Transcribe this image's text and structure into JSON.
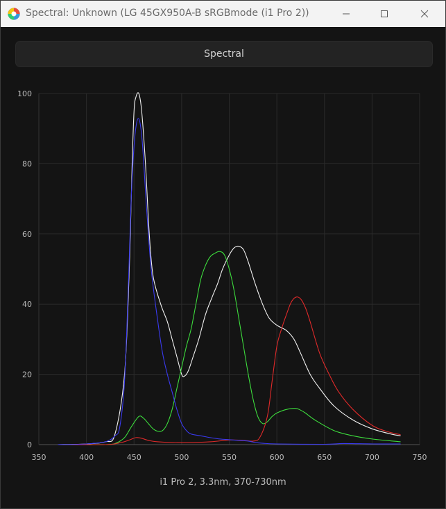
{
  "window": {
    "title": "Spectral: Unknown (LG 45GX950A-B sRGBmode (i1 Pro 2))"
  },
  "header": {
    "label": "Spectral"
  },
  "caption": "i1 Pro 2, 3.3nm, 370-730nm",
  "colors": {
    "white": "#f0f0f0",
    "green": "#3ddc3d",
    "red": "#e02a2a",
    "blue": "#3a3af0",
    "grid": "#2a2a2a",
    "tick": "#bdbdbd"
  },
  "chart_data": {
    "type": "line",
    "title": "",
    "xlabel": "",
    "ylabel": "",
    "xlim": [
      350,
      750
    ],
    "ylim": [
      0,
      100
    ],
    "xticks": [
      350,
      400,
      450,
      500,
      550,
      600,
      650,
      700,
      750
    ],
    "yticks": [
      0,
      20,
      40,
      60,
      80,
      100
    ],
    "grid": true,
    "series": [
      {
        "color": "#f0f0f0",
        "points": [
          [
            370,
            0
          ],
          [
            400,
            0.2
          ],
          [
            420,
            0.8
          ],
          [
            430,
            3
          ],
          [
            440,
            20
          ],
          [
            445,
            50
          ],
          [
            448,
            80
          ],
          [
            450,
            95
          ],
          [
            452,
            99
          ],
          [
            455,
            100
          ],
          [
            458,
            95
          ],
          [
            462,
            80
          ],
          [
            466,
            60
          ],
          [
            470,
            48
          ],
          [
            478,
            40
          ],
          [
            485,
            35
          ],
          [
            490,
            30
          ],
          [
            495,
            25
          ],
          [
            500,
            20
          ],
          [
            503,
            19.5
          ],
          [
            507,
            21
          ],
          [
            512,
            25
          ],
          [
            518,
            30
          ],
          [
            525,
            37
          ],
          [
            532,
            42
          ],
          [
            538,
            46
          ],
          [
            543,
            50
          ],
          [
            550,
            54
          ],
          [
            555,
            56
          ],
          [
            560,
            56.5
          ],
          [
            565,
            55.5
          ],
          [
            570,
            52
          ],
          [
            577,
            46
          ],
          [
            585,
            40
          ],
          [
            592,
            36
          ],
          [
            600,
            34
          ],
          [
            610,
            32.5
          ],
          [
            618,
            30
          ],
          [
            625,
            26
          ],
          [
            635,
            20
          ],
          [
            645,
            16
          ],
          [
            660,
            11
          ],
          [
            680,
            7
          ],
          [
            700,
            4.5
          ],
          [
            720,
            3
          ],
          [
            730,
            2.5
          ]
        ]
      },
      {
        "color": "#3ddc3d",
        "points": [
          [
            370,
            0
          ],
          [
            400,
            0
          ],
          [
            420,
            0
          ],
          [
            430,
            0.3
          ],
          [
            440,
            2
          ],
          [
            447,
            5
          ],
          [
            455,
            8
          ],
          [
            460,
            7.5
          ],
          [
            465,
            6
          ],
          [
            470,
            4.5
          ],
          [
            475,
            3.8
          ],
          [
            480,
            4
          ],
          [
            485,
            6
          ],
          [
            490,
            10
          ],
          [
            495,
            16
          ],
          [
            500,
            22
          ],
          [
            505,
            28
          ],
          [
            510,
            33
          ],
          [
            515,
            40
          ],
          [
            520,
            47
          ],
          [
            525,
            51
          ],
          [
            530,
            53.5
          ],
          [
            535,
            54.5
          ],
          [
            540,
            55
          ],
          [
            545,
            54
          ],
          [
            550,
            50
          ],
          [
            555,
            44
          ],
          [
            560,
            36
          ],
          [
            565,
            28
          ],
          [
            570,
            20
          ],
          [
            575,
            13
          ],
          [
            580,
            8
          ],
          [
            585,
            6
          ],
          [
            590,
            6.5
          ],
          [
            595,
            8
          ],
          [
            600,
            9
          ],
          [
            610,
            10
          ],
          [
            620,
            10.3
          ],
          [
            625,
            9.8
          ],
          [
            630,
            9
          ],
          [
            640,
            7
          ],
          [
            660,
            4
          ],
          [
            680,
            2.5
          ],
          [
            700,
            1.6
          ],
          [
            730,
            0.8
          ]
        ]
      },
      {
        "color": "#e02a2a",
        "points": [
          [
            370,
            0
          ],
          [
            420,
            0
          ],
          [
            435,
            0.5
          ],
          [
            445,
            1.3
          ],
          [
            452,
            2
          ],
          [
            458,
            1.8
          ],
          [
            465,
            1.2
          ],
          [
            475,
            0.8
          ],
          [
            500,
            0.5
          ],
          [
            530,
            0.8
          ],
          [
            550,
            1.3
          ],
          [
            565,
            1.2
          ],
          [
            575,
            1
          ],
          [
            582,
            2
          ],
          [
            590,
            8
          ],
          [
            595,
            18
          ],
          [
            600,
            28
          ],
          [
            605,
            33
          ],
          [
            610,
            37
          ],
          [
            615,
            40.5
          ],
          [
            620,
            42
          ],
          [
            625,
            41.5
          ],
          [
            630,
            39
          ],
          [
            635,
            35
          ],
          [
            645,
            26
          ],
          [
            655,
            20
          ],
          [
            665,
            15
          ],
          [
            680,
            10
          ],
          [
            700,
            5.5
          ],
          [
            715,
            3.8
          ],
          [
            730,
            2.8
          ]
        ]
      },
      {
        "color": "#3a3af0",
        "points": [
          [
            370,
            0
          ],
          [
            380,
            0
          ],
          [
            400,
            0.2
          ],
          [
            420,
            0.8
          ],
          [
            430,
            2.5
          ],
          [
            435,
            5
          ],
          [
            440,
            18
          ],
          [
            444,
            45
          ],
          [
            447,
            70
          ],
          [
            450,
            85
          ],
          [
            453,
            92
          ],
          [
            456,
            92
          ],
          [
            459,
            85
          ],
          [
            463,
            68
          ],
          [
            468,
            50
          ],
          [
            475,
            35
          ],
          [
            480,
            26
          ],
          [
            485,
            20
          ],
          [
            490,
            15
          ],
          [
            495,
            10
          ],
          [
            500,
            6
          ],
          [
            505,
            4
          ],
          [
            510,
            3
          ],
          [
            520,
            2.5
          ],
          [
            530,
            2
          ],
          [
            540,
            1.6
          ],
          [
            550,
            1.4
          ],
          [
            560,
            1.2
          ],
          [
            570,
            1
          ],
          [
            580,
            0.5
          ],
          [
            600,
            0.2
          ],
          [
            650,
            0.1
          ],
          [
            670,
            0.3
          ],
          [
            700,
            0.2
          ],
          [
            730,
            0.2
          ]
        ]
      }
    ]
  }
}
